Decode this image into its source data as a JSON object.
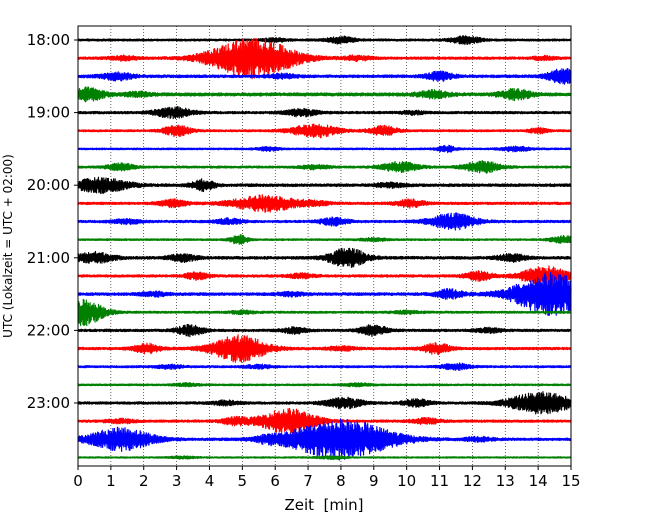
{
  "chart_data": {
    "type": "line",
    "title": "",
    "xlabel": "Zeit  [min]",
    "ylabel": "UTC (Lokalzeit = UTC + 02:00)",
    "xlim": [
      0,
      15
    ],
    "xticks": [
      0,
      1,
      2,
      3,
      4,
      5,
      6,
      7,
      8,
      9,
      10,
      11,
      12,
      13,
      14,
      15
    ],
    "xtick_labels": [
      "0",
      "1",
      "2",
      "3",
      "4",
      "5",
      "6",
      "7",
      "8",
      "9",
      "10",
      "11",
      "12",
      "13",
      "14",
      "15"
    ],
    "ytick_labels": [
      "18:00",
      "19:00",
      "20:00",
      "21:00",
      "22:00",
      "23:00"
    ],
    "grid": "vertical dotted lines at each minute",
    "colors": [
      "#000000",
      "#ff0000",
      "#0000ff",
      "#008000"
    ],
    "series": [
      {
        "start": "18:00",
        "color": "#000000",
        "noise": 0.06,
        "events": [
          [
            8,
            0.18,
            0.3
          ],
          [
            11.8,
            0.2,
            0.35
          ],
          [
            6,
            0.1,
            0.25
          ]
        ]
      },
      {
        "start": "18:15",
        "color": "#ff0000",
        "noise": 0.07,
        "events": [
          [
            5.3,
            1.15,
            0.9
          ],
          [
            1.4,
            0.12,
            0.3
          ],
          [
            8.5,
            0.13,
            0.3
          ],
          [
            14.2,
            0.1,
            0.25
          ]
        ]
      },
      {
        "start": "18:30",
        "color": "#0000ff",
        "noise": 0.08,
        "events": [
          [
            14.8,
            0.45,
            0.35
          ],
          [
            1.2,
            0.2,
            0.35
          ],
          [
            11,
            0.24,
            0.3
          ],
          [
            6.2,
            0.12,
            0.3
          ]
        ]
      },
      {
        "start": "18:45",
        "color": "#008000",
        "noise": 0.09,
        "events": [
          [
            0.3,
            0.35,
            0.35
          ],
          [
            10.8,
            0.2,
            0.35
          ],
          [
            13.3,
            0.28,
            0.35
          ],
          [
            1.8,
            0.12,
            0.3
          ]
        ]
      },
      {
        "start": "19:00",
        "color": "#000000",
        "noise": 0.07,
        "events": [
          [
            2.9,
            0.3,
            0.4
          ],
          [
            6.8,
            0.2,
            0.35
          ],
          [
            10.2,
            0.1,
            0.25
          ]
        ]
      },
      {
        "start": "19:15",
        "color": "#ff0000",
        "noise": 0.06,
        "events": [
          [
            7.2,
            0.38,
            0.5
          ],
          [
            3,
            0.3,
            0.3
          ],
          [
            9.3,
            0.26,
            0.3
          ],
          [
            14,
            0.15,
            0.2
          ]
        ]
      },
      {
        "start": "19:30",
        "color": "#0000ff",
        "noise": 0.05,
        "events": [
          [
            11.2,
            0.18,
            0.2
          ],
          [
            13.3,
            0.14,
            0.3
          ],
          [
            5.8,
            0.1,
            0.25
          ]
        ]
      },
      {
        "start": "19:45",
        "color": "#008000",
        "noise": 0.06,
        "events": [
          [
            1.3,
            0.2,
            0.3
          ],
          [
            9.8,
            0.28,
            0.4
          ],
          [
            12.3,
            0.32,
            0.4
          ],
          [
            7.2,
            0.12,
            0.3
          ]
        ]
      },
      {
        "start": "20:00",
        "color": "#000000",
        "noise": 0.08,
        "events": [
          [
            0.7,
            0.4,
            0.6
          ],
          [
            3.8,
            0.3,
            0.25
          ],
          [
            9.5,
            0.12,
            0.3
          ]
        ]
      },
      {
        "start": "20:15",
        "color": "#ff0000",
        "noise": 0.07,
        "events": [
          [
            5.7,
            0.45,
            0.7
          ],
          [
            2.9,
            0.2,
            0.3
          ],
          [
            10.1,
            0.22,
            0.3
          ],
          [
            7.2,
            0.12,
            0.3
          ]
        ]
      },
      {
        "start": "20:30",
        "color": "#0000ff",
        "noise": 0.07,
        "events": [
          [
            11.4,
            0.45,
            0.5
          ],
          [
            7.8,
            0.22,
            0.3
          ],
          [
            4.6,
            0.15,
            0.3
          ],
          [
            1.5,
            0.12,
            0.3
          ]
        ]
      },
      {
        "start": "20:45",
        "color": "#008000",
        "noise": 0.05,
        "events": [
          [
            4.9,
            0.25,
            0.2
          ],
          [
            14.8,
            0.2,
            0.3
          ],
          [
            9,
            0.08,
            0.3
          ]
        ]
      },
      {
        "start": "21:00",
        "color": "#000000",
        "noise": 0.08,
        "events": [
          [
            8.2,
            0.55,
            0.4
          ],
          [
            0.5,
            0.3,
            0.4
          ],
          [
            3.2,
            0.2,
            0.3
          ],
          [
            13.2,
            0.2,
            0.3
          ]
        ]
      },
      {
        "start": "21:15",
        "color": "#ff0000",
        "noise": 0.07,
        "events": [
          [
            14.2,
            0.55,
            0.5
          ],
          [
            12.2,
            0.25,
            0.3
          ],
          [
            3.6,
            0.2,
            0.25
          ],
          [
            6.8,
            0.12,
            0.3
          ]
        ]
      },
      {
        "start": "21:30",
        "color": "#0000ff",
        "noise": 0.08,
        "events": [
          [
            14.4,
            1.2,
            0.8
          ],
          [
            11.3,
            0.25,
            0.3
          ],
          [
            2.3,
            0.12,
            0.3
          ],
          [
            6.5,
            0.1,
            0.3
          ]
        ]
      },
      {
        "start": "21:45",
        "color": "#008000",
        "noise": 0.06,
        "events": [
          [
            0.15,
            0.75,
            0.45
          ],
          [
            5,
            0.08,
            0.3
          ],
          [
            10,
            0.08,
            0.3
          ]
        ]
      },
      {
        "start": "22:00",
        "color": "#000000",
        "noise": 0.07,
        "events": [
          [
            3.4,
            0.3,
            0.3
          ],
          [
            9,
            0.3,
            0.3
          ],
          [
            6.6,
            0.18,
            0.25
          ],
          [
            12.5,
            0.12,
            0.3
          ]
        ]
      },
      {
        "start": "22:15",
        "color": "#ff0000",
        "noise": 0.07,
        "events": [
          [
            4.9,
            0.75,
            0.6
          ],
          [
            2.1,
            0.26,
            0.3
          ],
          [
            10.9,
            0.3,
            0.3
          ],
          [
            8,
            0.12,
            0.3
          ]
        ]
      },
      {
        "start": "22:30",
        "color": "#0000ff",
        "noise": 0.06,
        "events": [
          [
            11.5,
            0.18,
            0.3
          ],
          [
            5.5,
            0.1,
            0.3
          ],
          [
            2.8,
            0.1,
            0.3
          ]
        ]
      },
      {
        "start": "22:45",
        "color": "#008000",
        "noise": 0.05,
        "events": [
          [
            8.5,
            0.08,
            0.3
          ],
          [
            3.3,
            0.08,
            0.3
          ]
        ]
      },
      {
        "start": "23:00",
        "color": "#000000",
        "noise": 0.07,
        "events": [
          [
            14.1,
            0.6,
            0.7
          ],
          [
            8.1,
            0.3,
            0.4
          ],
          [
            10.3,
            0.2,
            0.3
          ],
          [
            4.5,
            0.12,
            0.3
          ]
        ]
      },
      {
        "start": "23:15",
        "color": "#ff0000",
        "noise": 0.07,
        "events": [
          [
            6.4,
            0.7,
            0.6
          ],
          [
            4.8,
            0.2,
            0.3
          ],
          [
            10.6,
            0.15,
            0.3
          ],
          [
            1.3,
            0.12,
            0.3
          ]
        ]
      },
      {
        "start": "23:30",
        "color": "#0000ff",
        "noise": 0.07,
        "events": [
          [
            8,
            1.15,
            1.1
          ],
          [
            1.3,
            0.65,
            0.7
          ],
          [
            5.8,
            0.15,
            0.3
          ],
          [
            12.2,
            0.12,
            0.3
          ]
        ]
      },
      {
        "start": "23:45",
        "color": "#008000",
        "noise": 0.04,
        "events": [
          [
            7.7,
            0.08,
            0.3
          ],
          [
            3.2,
            0.06,
            0.3
          ]
        ]
      }
    ]
  }
}
